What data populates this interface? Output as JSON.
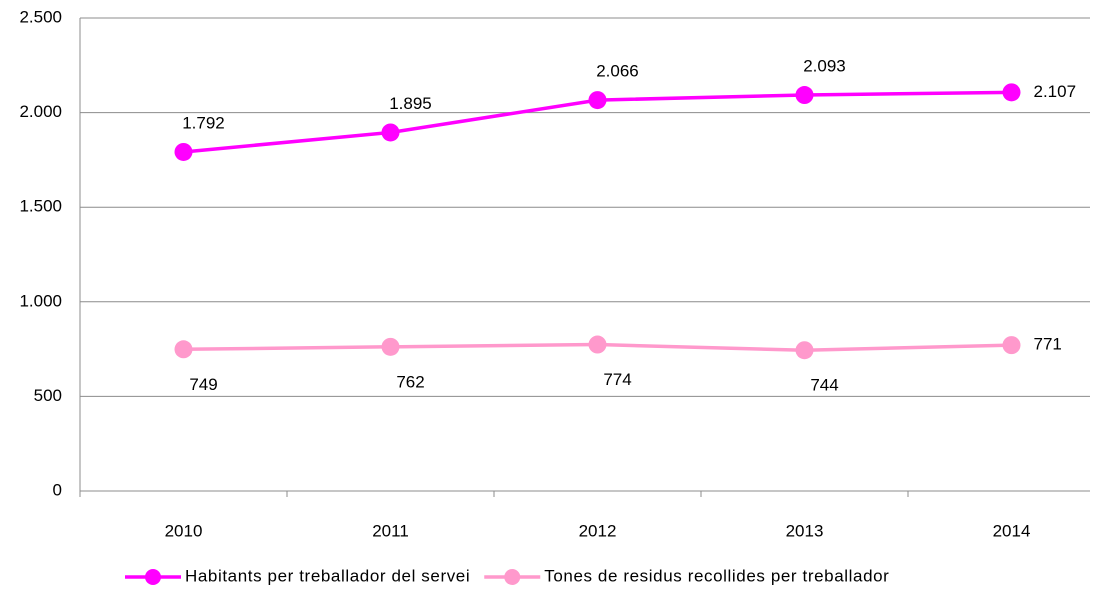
{
  "chart_data": {
    "type": "line",
    "categories": [
      "2010",
      "2011",
      "2012",
      "2013",
      "2014"
    ],
    "series": [
      {
        "name": "Habitants per treballador del servei",
        "color": "#ff00ff",
        "values": [
          1792,
          1895,
          2066,
          2093,
          2107
        ],
        "value_labels": [
          "1.792",
          "1.895",
          "2.066",
          "2.093",
          "2.107"
        ]
      },
      {
        "name": "Tones de residus recollides per treballador",
        "color": "#ff99cc",
        "values": [
          749,
          762,
          774,
          744,
          771
        ]
      }
    ],
    "ylim": [
      0,
      2500
    ],
    "yticks": [
      0,
      500,
      {
        "value": 1000,
        "label": "1.000"
      },
      {
        "value": 1500,
        "label": "1.500"
      },
      {
        "value": 2000,
        "label": "2.000"
      },
      {
        "value": 2500,
        "label": "2.500"
      }
    ],
    "grid": true,
    "legend": "bottom"
  }
}
